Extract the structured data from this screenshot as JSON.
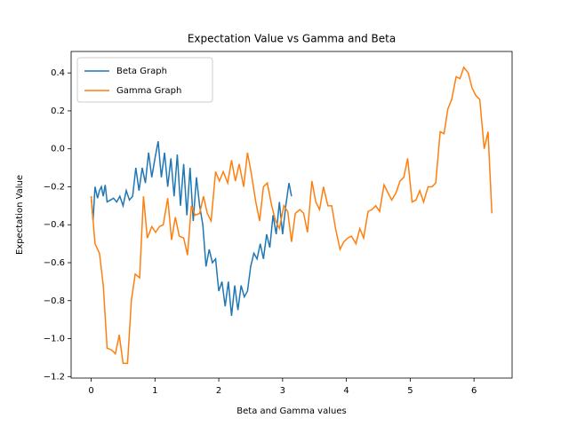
{
  "chart_data": {
    "type": "line",
    "title": "Expectation Value vs Gamma and Beta",
    "x_label": "Beta and Gamma values",
    "y_label": "Expectation Value",
    "xlim": [
      -0.314,
      6.597
    ],
    "ylim": [
      -1.208,
      0.513
    ],
    "xticks": [
      0,
      1,
      2,
      3,
      4,
      5,
      6
    ],
    "yticks": [
      {
        "value": -1.2,
        "label": "−1.2"
      },
      {
        "value": -1.0,
        "label": "−1.0"
      },
      {
        "value": -0.8,
        "label": "−0.8"
      },
      {
        "value": -0.6,
        "label": "−0.6"
      },
      {
        "value": -0.4,
        "label": "−0.4"
      },
      {
        "value": -0.2,
        "label": "−0.2"
      },
      {
        "value": 0,
        "label": "0.0"
      },
      0.2,
      0.4
    ],
    "grid": false,
    "legend": "upper-left",
    "series": [
      {
        "name": "Beta Graph",
        "color": "#1f77b4",
        "x": [
          0,
          0.03,
          0.06,
          0.1,
          0.13,
          0.16,
          0.19,
          0.22,
          0.25,
          0.3,
          0.35,
          0.4,
          0.45,
          0.5,
          0.55,
          0.6,
          0.65,
          0.7,
          0.75,
          0.8,
          0.85,
          0.9,
          0.95,
          1.0,
          1.05,
          1.1,
          1.15,
          1.2,
          1.25,
          1.3,
          1.35,
          1.4,
          1.45,
          1.5,
          1.55,
          1.6,
          1.65,
          1.7,
          1.75,
          1.8,
          1.85,
          1.9,
          1.95,
          2.0,
          2.05,
          2.1,
          2.15,
          2.2,
          2.25,
          2.3,
          2.35,
          2.4,
          2.45,
          2.5,
          2.55,
          2.6,
          2.65,
          2.7,
          2.75,
          2.8,
          2.85,
          2.9,
          2.95,
          3.0,
          3.05,
          3.1,
          3.14
        ],
        "values": [
          -0.25,
          -0.38,
          -0.2,
          -0.26,
          -0.22,
          -0.2,
          -0.25,
          -0.19,
          -0.28,
          -0.27,
          -0.26,
          -0.28,
          -0.25,
          -0.3,
          -0.22,
          -0.27,
          -0.25,
          -0.1,
          -0.22,
          -0.1,
          -0.18,
          -0.02,
          -0.15,
          -0.05,
          0.04,
          -0.15,
          -0.02,
          -0.2,
          -0.05,
          -0.25,
          -0.03,
          -0.3,
          -0.08,
          -0.35,
          -0.1,
          -0.38,
          -0.15,
          -0.3,
          -0.4,
          -0.62,
          -0.53,
          -0.6,
          -0.58,
          -0.75,
          -0.7,
          -0.83,
          -0.7,
          -0.88,
          -0.72,
          -0.85,
          -0.72,
          -0.78,
          -0.75,
          -0.62,
          -0.55,
          -0.58,
          -0.5,
          -0.58,
          -0.45,
          -0.52,
          -0.35,
          -0.45,
          -0.28,
          -0.45,
          -0.3,
          -0.18,
          -0.25
        ]
      },
      {
        "name": "Gamma Graph",
        "color": "#ff7f0e",
        "x": [
          0,
          0.06,
          0.13,
          0.19,
          0.25,
          0.32,
          0.38,
          0.44,
          0.5,
          0.57,
          0.63,
          0.69,
          0.76,
          0.82,
          0.88,
          0.95,
          1.01,
          1.07,
          1.13,
          1.2,
          1.26,
          1.32,
          1.38,
          1.45,
          1.51,
          1.57,
          1.63,
          1.7,
          1.76,
          1.82,
          1.88,
          1.95,
          2.01,
          2.07,
          2.14,
          2.2,
          2.26,
          2.32,
          2.39,
          2.45,
          2.51,
          2.58,
          2.64,
          2.7,
          2.76,
          2.83,
          2.89,
          2.95,
          3.02,
          3.08,
          3.14,
          3.2,
          3.27,
          3.33,
          3.39,
          3.46,
          3.52,
          3.58,
          3.64,
          3.71,
          3.77,
          3.83,
          3.9,
          3.96,
          4.02,
          4.08,
          4.15,
          4.21,
          4.27,
          4.34,
          4.4,
          4.46,
          4.52,
          4.59,
          4.65,
          4.71,
          4.78,
          4.84,
          4.9,
          4.96,
          5.03,
          5.09,
          5.15,
          5.21,
          5.28,
          5.34,
          5.4,
          5.47,
          5.53,
          5.59,
          5.65,
          5.72,
          5.78,
          5.84,
          5.91,
          5.97,
          6.03,
          6.09,
          6.16,
          6.22,
          6.28
        ],
        "values": [
          -0.25,
          -0.5,
          -0.55,
          -0.72,
          -1.05,
          -1.06,
          -1.08,
          -0.98,
          -1.13,
          -1.13,
          -0.8,
          -0.66,
          -0.68,
          -0.25,
          -0.47,
          -0.41,
          -0.44,
          -0.41,
          -0.4,
          -0.26,
          -0.48,
          -0.36,
          -0.46,
          -0.47,
          -0.56,
          -0.3,
          -0.35,
          -0.34,
          -0.25,
          -0.34,
          -0.38,
          -0.12,
          -0.17,
          -0.12,
          -0.18,
          -0.06,
          -0.17,
          -0.08,
          -0.2,
          -0.02,
          -0.13,
          -0.28,
          -0.38,
          -0.2,
          -0.18,
          -0.3,
          -0.38,
          -0.42,
          -0.3,
          -0.33,
          -0.49,
          -0.34,
          -0.32,
          -0.34,
          -0.44,
          -0.17,
          -0.28,
          -0.32,
          -0.2,
          -0.3,
          -0.3,
          -0.42,
          -0.53,
          -0.49,
          -0.47,
          -0.46,
          -0.5,
          -0.42,
          -0.47,
          -0.33,
          -0.32,
          -0.3,
          -0.33,
          -0.19,
          -0.23,
          -0.27,
          -0.23,
          -0.17,
          -0.15,
          -0.05,
          -0.28,
          -0.27,
          -0.22,
          -0.28,
          -0.2,
          -0.2,
          -0.18,
          0.09,
          0.08,
          0.21,
          0.26,
          0.38,
          0.37,
          0.43,
          0.4,
          0.32,
          0.28,
          0.26,
          0.0,
          0.09,
          -0.34
        ]
      }
    ]
  }
}
